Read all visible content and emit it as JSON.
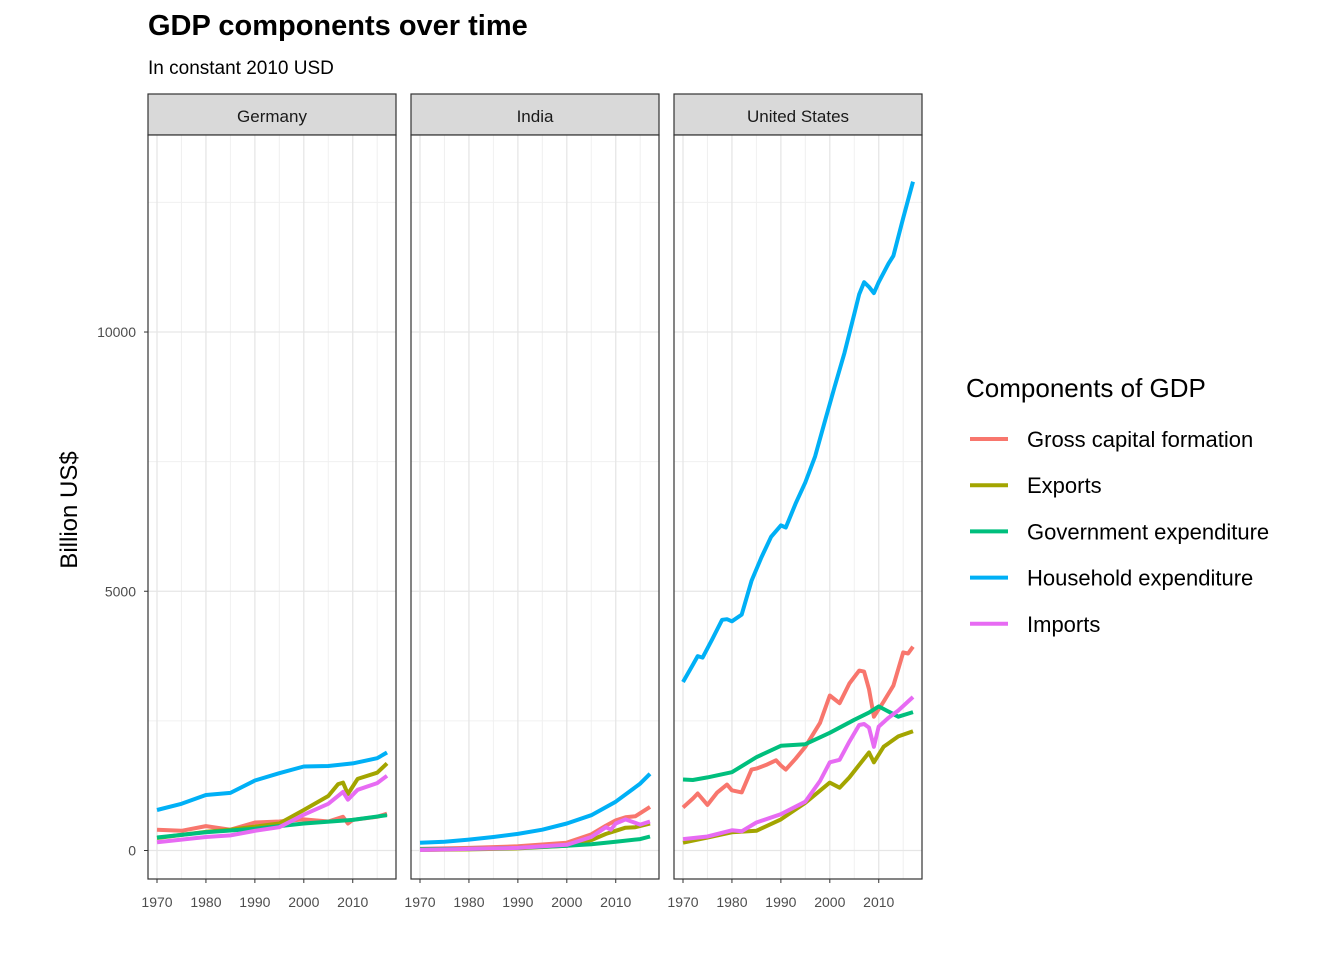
{
  "title": "GDP components over time",
  "subtitle": "In constant 2010 USD",
  "legend": {
    "title": "Components of GDP",
    "placement": "right",
    "items": [
      {
        "label": "Gross capital formation",
        "color": "#F8766D"
      },
      {
        "label": "Exports",
        "color": "#A3A500"
      },
      {
        "label": "Government expenditure",
        "color": "#00BF7D"
      },
      {
        "label": "Household expenditure",
        "color": "#00B0F6"
      },
      {
        "label": "Imports",
        "color": "#E76BF3"
      }
    ]
  },
  "chart_data": {
    "type": "line",
    "ylabel": "Billion US$",
    "xlabel": "",
    "xlim": [
      1970,
      2017
    ],
    "ylim": [
      -550,
      13800
    ],
    "x_ticks": [
      1970,
      1980,
      1990,
      2000,
      2010
    ],
    "y_ticks": [
      0,
      5000,
      10000
    ],
    "grid": true,
    "panels": [
      {
        "name": "Germany",
        "series": [
          {
            "name": "Gross capital formation",
            "x": [
              1970,
              1975,
              1980,
              1985,
              1990,
              1995,
              2000,
              2005,
              2008,
              2009,
              2010,
              2015,
              2017
            ],
            "y": [
              400,
              380,
              470,
              400,
              540,
              560,
              600,
              560,
              650,
              520,
              590,
              650,
              710
            ]
          },
          {
            "name": "Exports",
            "x": [
              1970,
              1975,
              1980,
              1985,
              1990,
              1995,
              2000,
              2005,
              2007,
              2008,
              2009,
              2011,
              2015,
              2017
            ],
            "y": [
              240,
              300,
              360,
              400,
              460,
              520,
              780,
              1050,
              1280,
              1310,
              1090,
              1380,
              1500,
              1680
            ]
          },
          {
            "name": "Government expenditure",
            "x": [
              1970,
              1980,
              1990,
              2000,
              2010,
              2017
            ],
            "y": [
              250,
              350,
              420,
              520,
              590,
              680
            ]
          },
          {
            "name": "Household expenditure",
            "x": [
              1970,
              1975,
              1980,
              1985,
              1990,
              1995,
              2000,
              2005,
              2010,
              2015,
              2017
            ],
            "y": [
              780,
              900,
              1070,
              1110,
              1350,
              1490,
              1620,
              1630,
              1680,
              1780,
              1890
            ]
          },
          {
            "name": "Imports",
            "x": [
              1970,
              1975,
              1980,
              1985,
              1990,
              1995,
              2000,
              2005,
              2008,
              2009,
              2011,
              2015,
              2017
            ],
            "y": [
              160,
              210,
              260,
              290,
              380,
              450,
              690,
              900,
              1130,
              980,
              1170,
              1300,
              1440
            ]
          }
        ]
      },
      {
        "name": "India",
        "series": [
          {
            "name": "Gross capital formation",
            "x": [
              1970,
              1980,
              1990,
              2000,
              2005,
              2008,
              2010,
              2012,
              2014,
              2017
            ],
            "y": [
              30,
              50,
              80,
              150,
              310,
              480,
              580,
              640,
              660,
              840
            ]
          },
          {
            "name": "Exports",
            "x": [
              1970,
              1980,
              1990,
              2000,
              2005,
              2008,
              2010,
              2012,
              2014,
              2017
            ],
            "y": [
              10,
              20,
              40,
              90,
              200,
              320,
              380,
              440,
              450,
              520
            ]
          },
          {
            "name": "Government expenditure",
            "x": [
              1970,
              1980,
              1990,
              2000,
              2005,
              2010,
              2015,
              2017
            ],
            "y": [
              20,
              30,
              50,
              90,
              120,
              170,
              220,
              270
            ]
          },
          {
            "name": "Household expenditure",
            "x": [
              1970,
              1975,
              1980,
              1985,
              1990,
              1995,
              2000,
              2005,
              2010,
              2015,
              2017
            ],
            "y": [
              150,
              170,
              210,
              260,
              320,
              400,
              520,
              680,
              940,
              1290,
              1480
            ]
          },
          {
            "name": "Imports",
            "x": [
              1970,
              1980,
              1990,
              2000,
              2005,
              2008,
              2009,
              2010,
              2012,
              2015,
              2017
            ],
            "y": [
              10,
              30,
              50,
              110,
              260,
              450,
              400,
              520,
              600,
              500,
              560
            ]
          }
        ]
      },
      {
        "name": "United States",
        "series": [
          {
            "name": "Gross capital formation",
            "x": [
              1970,
              1972,
              1973,
              1975,
              1977,
              1979,
              1980,
              1982,
              1984,
              1985,
              1987,
              1989,
              1990,
              1991,
              1993,
              1995,
              1998,
              2000,
              2002,
              2004,
              2006,
              2007,
              2008,
              2009,
              2011,
              2013,
              2015,
              2016,
              2017
            ],
            "y": [
              830,
              1000,
              1100,
              880,
              1120,
              1270,
              1160,
              1120,
              1560,
              1580,
              1650,
              1740,
              1640,
              1560,
              1770,
              2000,
              2460,
              2990,
              2840,
              3220,
              3470,
              3450,
              3110,
              2580,
              2870,
              3180,
              3820,
              3800,
              3930
            ]
          },
          {
            "name": "Exports",
            "x": [
              1970,
              1975,
              1980,
              1985,
              1990,
              1995,
              2000,
              2002,
              2004,
              2006,
              2008,
              2009,
              2011,
              2014,
              2017
            ],
            "y": [
              150,
              250,
              350,
              380,
              600,
              920,
              1310,
              1210,
              1410,
              1650,
              1890,
              1700,
              2000,
              2200,
              2300
            ]
          },
          {
            "name": "Government expenditure",
            "x": [
              1970,
              1972,
              1975,
              1980,
              1985,
              1990,
              1995,
              2000,
              2005,
              2008,
              2010,
              2014,
              2017
            ],
            "y": [
              1370,
              1360,
              1410,
              1510,
              1800,
              2020,
              2050,
              2270,
              2520,
              2660,
              2780,
              2580,
              2670
            ]
          },
          {
            "name": "Household expenditure",
            "x": [
              1970,
              1972,
              1973,
              1974,
              1976,
              1978,
              1979,
              1980,
              1982,
              1984,
              1986,
              1988,
              1990,
              1991,
              1993,
              1995,
              1997,
              1999,
              2001,
              2003,
              2005,
              2006,
              2007,
              2008,
              2009,
              2010,
              2012,
              2013,
              2015,
              2017
            ],
            "y": [
              3250,
              3580,
              3750,
              3720,
              4080,
              4450,
              4460,
              4420,
              4550,
              5200,
              5650,
              6050,
              6270,
              6230,
              6690,
              7100,
              7600,
              8280,
              8950,
              9600,
              10350,
              10730,
              10960,
              10870,
              10750,
              10960,
              11320,
              11470,
              12200,
              12900
            ]
          },
          {
            "name": "Imports",
            "x": [
              1970,
              1975,
              1980,
              1982,
              1985,
              1990,
              1995,
              1998,
              2000,
              2002,
              2004,
              2006,
              2007,
              2008,
              2009,
              2010,
              2012,
              2014,
              2017
            ],
            "y": [
              220,
              270,
              390,
              370,
              540,
              700,
              940,
              1340,
              1700,
              1750,
              2100,
              2420,
              2440,
              2370,
              2000,
              2390,
              2560,
              2700,
              2960
            ]
          }
        ]
      }
    ]
  }
}
